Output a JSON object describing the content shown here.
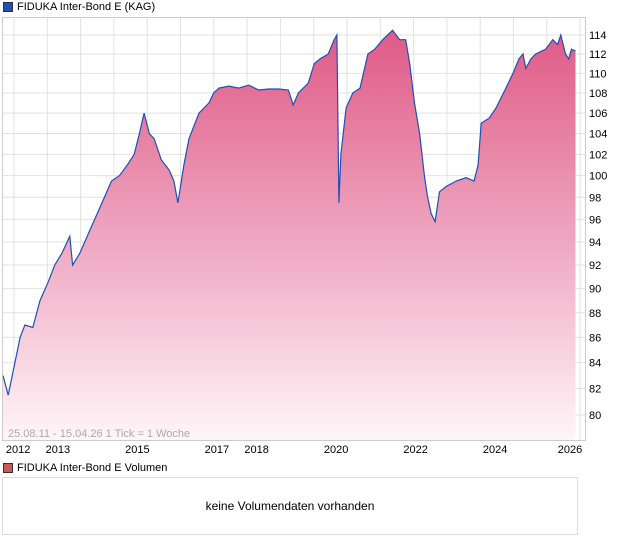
{
  "legend": {
    "main": "FIDUKA Inter-Bond E (KAG)",
    "main_color": "#1f4fb5",
    "volume": "FIDUKA Inter-Bond E Volumen",
    "volume_color": "#c85a5a"
  },
  "info": "25.08.11 - 15.04.26   1 Tick = 1 Woche",
  "volume_message": "keine Volumendaten vorhanden",
  "chart_data": {
    "type": "area",
    "title": "FIDUKA Inter-Bond E (KAG)",
    "xlabel": "",
    "ylabel": "",
    "yscale": "log",
    "ylim": [
      78,
      116
    ],
    "xlim": [
      2011.65,
      2026.29
    ],
    "x_tick_labels": [
      "2012",
      "2013",
      "2015",
      "2017",
      "2018",
      "2020",
      "2022",
      "2024",
      "2026"
    ],
    "y_tick_labels": [
      "80",
      "82",
      "84",
      "86",
      "88",
      "90",
      "92",
      "94",
      "96",
      "98",
      "100",
      "102",
      "104",
      "106",
      "108",
      "110",
      "112",
      "114"
    ],
    "grid": true,
    "series": [
      {
        "name": "FIDUKA Inter-Bond E (KAG)",
        "x": [
          2011.65,
          2011.78,
          2011.95,
          2012.08,
          2012.2,
          2012.4,
          2012.58,
          2012.78,
          2012.95,
          2013.13,
          2013.33,
          2013.4,
          2013.58,
          2013.83,
          2014.08,
          2014.38,
          2014.58,
          2014.78,
          2014.95,
          2015.08,
          2015.2,
          2015.33,
          2015.45,
          2015.63,
          2015.83,
          2015.95,
          2016.05,
          2016.2,
          2016.33,
          2016.58,
          2016.83,
          2016.95,
          2017.08,
          2017.33,
          2017.58,
          2017.83,
          2018.08,
          2018.33,
          2018.58,
          2018.83,
          2018.95,
          2019.08,
          2019.33,
          2019.48,
          2019.63,
          2019.83,
          2019.98,
          2020.05,
          2020.1,
          2020.15,
          2020.28,
          2020.45,
          2020.63,
          2020.83,
          2021.0,
          2021.2,
          2021.45,
          2021.63,
          2021.78,
          2021.88,
          2022.0,
          2022.13,
          2022.25,
          2022.33,
          2022.42,
          2022.52,
          2022.63,
          2022.8,
          2023.05,
          2023.3,
          2023.5,
          2023.6,
          2023.68,
          2023.88,
          2024.05,
          2024.3,
          2024.48,
          2024.63,
          2024.73,
          2024.8,
          2024.93,
          2025.05,
          2025.3,
          2025.48,
          2025.6,
          2025.68,
          2025.8,
          2025.88,
          2025.95,
          2026.05
        ],
        "y": [
          83,
          81.5,
          84,
          86,
          87,
          86.8,
          89,
          90.5,
          92,
          93,
          94.5,
          92,
          93,
          95,
          97,
          99.5,
          100,
          101,
          102,
          104,
          106,
          104,
          103.5,
          101.5,
          100.5,
          99.5,
          97.5,
          101,
          103.5,
          106,
          107,
          108,
          108.5,
          108.7,
          108.5,
          108.8,
          108.3,
          108.4,
          108.4,
          108.3,
          106.8,
          108,
          109,
          111,
          111.5,
          112,
          113.5,
          114,
          97.5,
          102,
          106.5,
          108,
          108.5,
          112,
          112.5,
          113.5,
          114.5,
          113.5,
          113.5,
          111,
          107,
          104,
          100,
          98,
          96.5,
          95.8,
          98.5,
          99,
          99.5,
          99.8,
          99.5,
          101,
          105,
          105.5,
          106.5,
          108.5,
          110,
          111.5,
          112,
          110.5,
          111.5,
          112,
          112.5,
          113.5,
          113,
          114,
          112,
          111.5,
          112.5,
          112.3
        ]
      }
    ]
  }
}
